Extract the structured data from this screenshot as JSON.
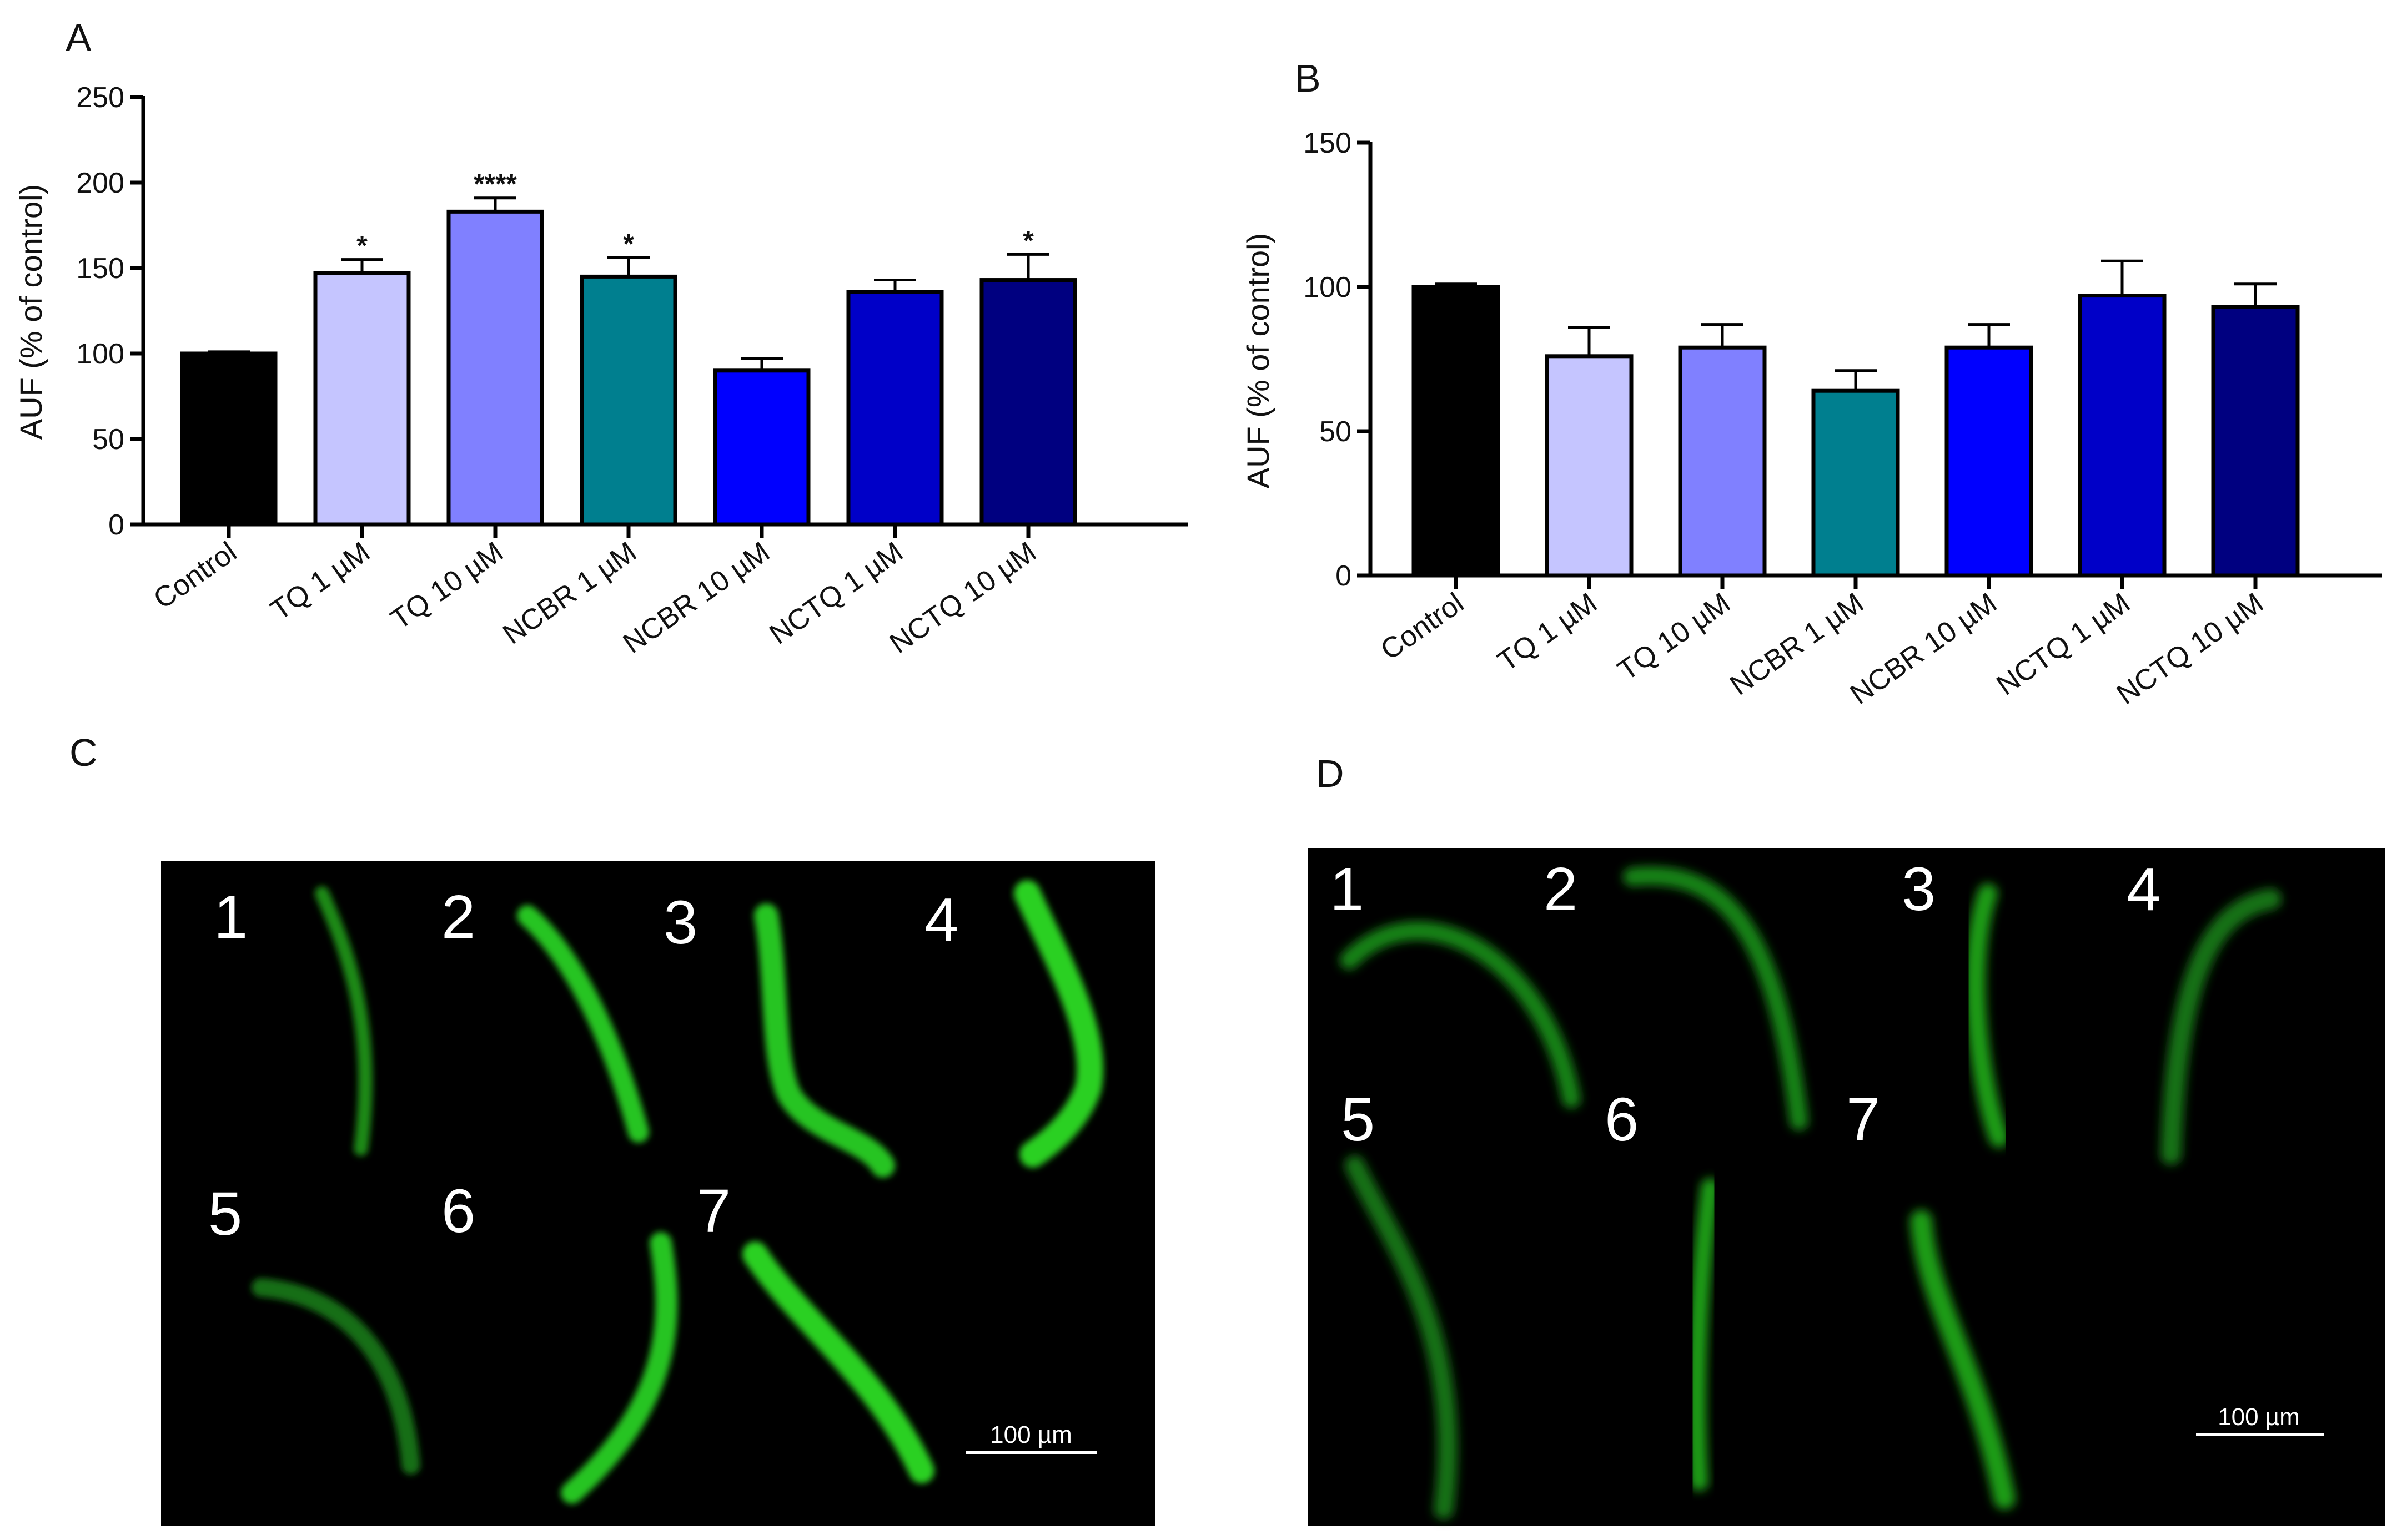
{
  "chart_data": [
    {
      "panel": "A",
      "type": "bar",
      "title": "",
      "xlabel": "",
      "ylabel": "AUF (% of control)",
      "ylim": [
        0,
        250
      ],
      "yticks": [
        0,
        50,
        100,
        150,
        200,
        250
      ],
      "categories": [
        "Control",
        "TQ 1 µM",
        "TQ 10 µM",
        "NCBR 1 µM",
        "NCBR 10 µM",
        "NCTQ 1 µM",
        "NCTQ 10 µM"
      ],
      "values": [
        100,
        147,
        183,
        145,
        90,
        136,
        143
      ],
      "errors": [
        1,
        8,
        8,
        11,
        7,
        7,
        15
      ],
      "significance": [
        "",
        "*",
        "****",
        "*",
        "",
        "",
        "*"
      ],
      "colors": [
        "#000000",
        "#c5c5ff",
        "#8080ff",
        "#007f8f",
        "#0000ff",
        "#0000c8",
        "#000080"
      ]
    },
    {
      "panel": "B",
      "type": "bar",
      "title": "",
      "xlabel": "",
      "ylabel": "AUF (% of control)",
      "ylim": [
        0,
        150
      ],
      "yticks": [
        0,
        50,
        100,
        150
      ],
      "categories": [
        "Control",
        "TQ 1 µM",
        "TQ 10 µM",
        "NCBR 1 µM",
        "NCBR 10 µM",
        "NCTQ 1 µM",
        "NCTQ 10 µM"
      ],
      "values": [
        100,
        76,
        79,
        64,
        79,
        97,
        93
      ],
      "errors": [
        1,
        10,
        8,
        7,
        8,
        12,
        8
      ],
      "significance": [
        "",
        "",
        "",
        "",
        "",
        "",
        ""
      ],
      "colors": [
        "#000000",
        "#c5c5ff",
        "#8080ff",
        "#007f8f",
        "#0000ff",
        "#0000c8",
        "#000080"
      ]
    }
  ],
  "panels": {
    "a": "A",
    "b": "B",
    "c": "C",
    "d": "D"
  },
  "images": {
    "c": {
      "labels": [
        "1",
        "2",
        "3",
        "4",
        "5",
        "6",
        "7"
      ],
      "scale_bar": "100 µm",
      "background": "#000000",
      "worm_color": "#22c41e"
    },
    "d": {
      "labels": [
        "1",
        "2",
        "3",
        "4",
        "5",
        "6",
        "7"
      ],
      "scale_bar": "100 µm",
      "background": "#000000",
      "worm_color": "#1d9a1a"
    }
  }
}
